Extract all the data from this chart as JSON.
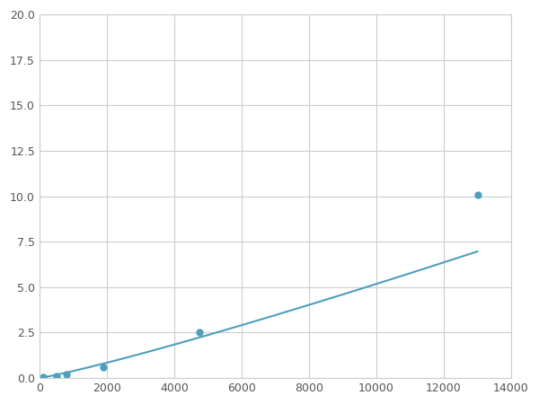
{
  "x": [
    100,
    500,
    800,
    1900,
    4750,
    13000
  ],
  "y": [
    0.05,
    0.12,
    0.2,
    0.6,
    2.5,
    10.1
  ],
  "line_color": "#4d9fbc",
  "marker_color": "#4d9fbc",
  "marker_size": 5,
  "xlim": [
    0,
    14000
  ],
  "ylim": [
    0,
    20.0
  ],
  "xticks": [
    0,
    2000,
    4000,
    6000,
    8000,
    10000,
    12000,
    14000
  ],
  "yticks": [
    0.0,
    2.5,
    5.0,
    7.5,
    10.0,
    12.5,
    15.0,
    17.5,
    20.0
  ],
  "grid": true,
  "background_color": "#ffffff",
  "grid_color": "#cccccc",
  "figsize": [
    6.0,
    4.5
  ],
  "dpi": 100,
  "tick_labelsize": 9,
  "tick_color": "#555555"
}
